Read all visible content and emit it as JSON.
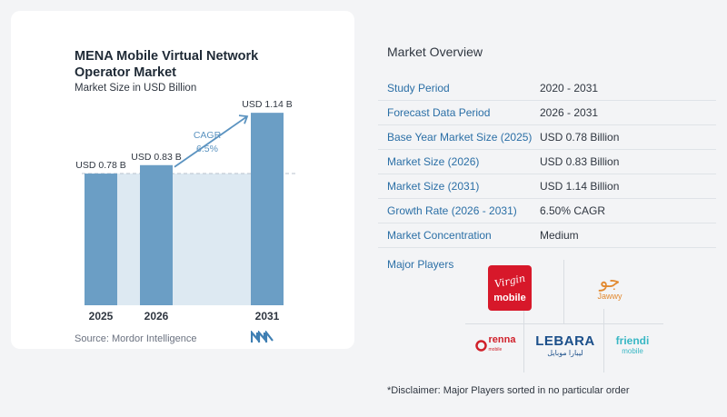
{
  "chart": {
    "title": "MENA Mobile Virtual Network Operator Market",
    "subtitle": "Market Size in USD Billion",
    "source": "Source: Mordor Intelligence",
    "cagr_label": "CAGR",
    "cagr_value": "6.5%",
    "colors": {
      "bar": "#6b9ec5",
      "band": "#dde9f2",
      "arrow": "#5b93c0",
      "dashed": "#b9c2cc"
    }
  },
  "chart_data": {
    "type": "bar",
    "title": "MENA Mobile Virtual Network Operator Market",
    "subtitle": "Market Size in USD Billion",
    "categories": [
      "2025",
      "2026",
      "2031"
    ],
    "values": [
      0.78,
      0.83,
      1.14
    ],
    "data_labels": [
      "USD 0.78 B",
      "USD 0.83 B",
      "USD 1.14 B"
    ],
    "unit": "USD Billion",
    "ylim": [
      0,
      1.2
    ],
    "grid": false,
    "annotation": {
      "text": "CAGR 6.5%",
      "from": "2026",
      "to": "2031"
    }
  },
  "overview": {
    "title": "Market Overview",
    "rows": [
      {
        "label": "Study Period",
        "value": "2020 - 2031"
      },
      {
        "label": "Forecast Data Period",
        "value": "2026 - 2031"
      },
      {
        "label": "Base Year Market Size (2025)",
        "value": "USD 0.78 Billion"
      },
      {
        "label": "Market Size (2026)",
        "value": "USD 0.83 Billion"
      },
      {
        "label": "Market Size (2031)",
        "value": "USD 1.14 Billion"
      },
      {
        "label": "Growth Rate (2026 - 2031)",
        "value": "6.50% CAGR"
      },
      {
        "label": "Market Concentration",
        "value": "Medium"
      }
    ]
  },
  "players": {
    "title": "Major Players",
    "virgin": {
      "script": "Virgin",
      "word": "mobile"
    },
    "jawwy": {
      "glyph": "جو",
      "word": "Jawwy"
    },
    "renna": {
      "word": "renna",
      "sub": "mobile"
    },
    "lebara": {
      "word": "LEBARA",
      "arabic": "ليبارا موبايل"
    },
    "friendi": {
      "word": "friendi",
      "sub": "mobile"
    },
    "colors": {
      "virgin": "#d7182a",
      "jawwy": "#e2892f",
      "renna": "#d0202a",
      "lebara": "#1b4f8a",
      "friendi": "#38b7c4"
    }
  },
  "disclaimer": "*Disclaimer: Major Players sorted in no particular order"
}
